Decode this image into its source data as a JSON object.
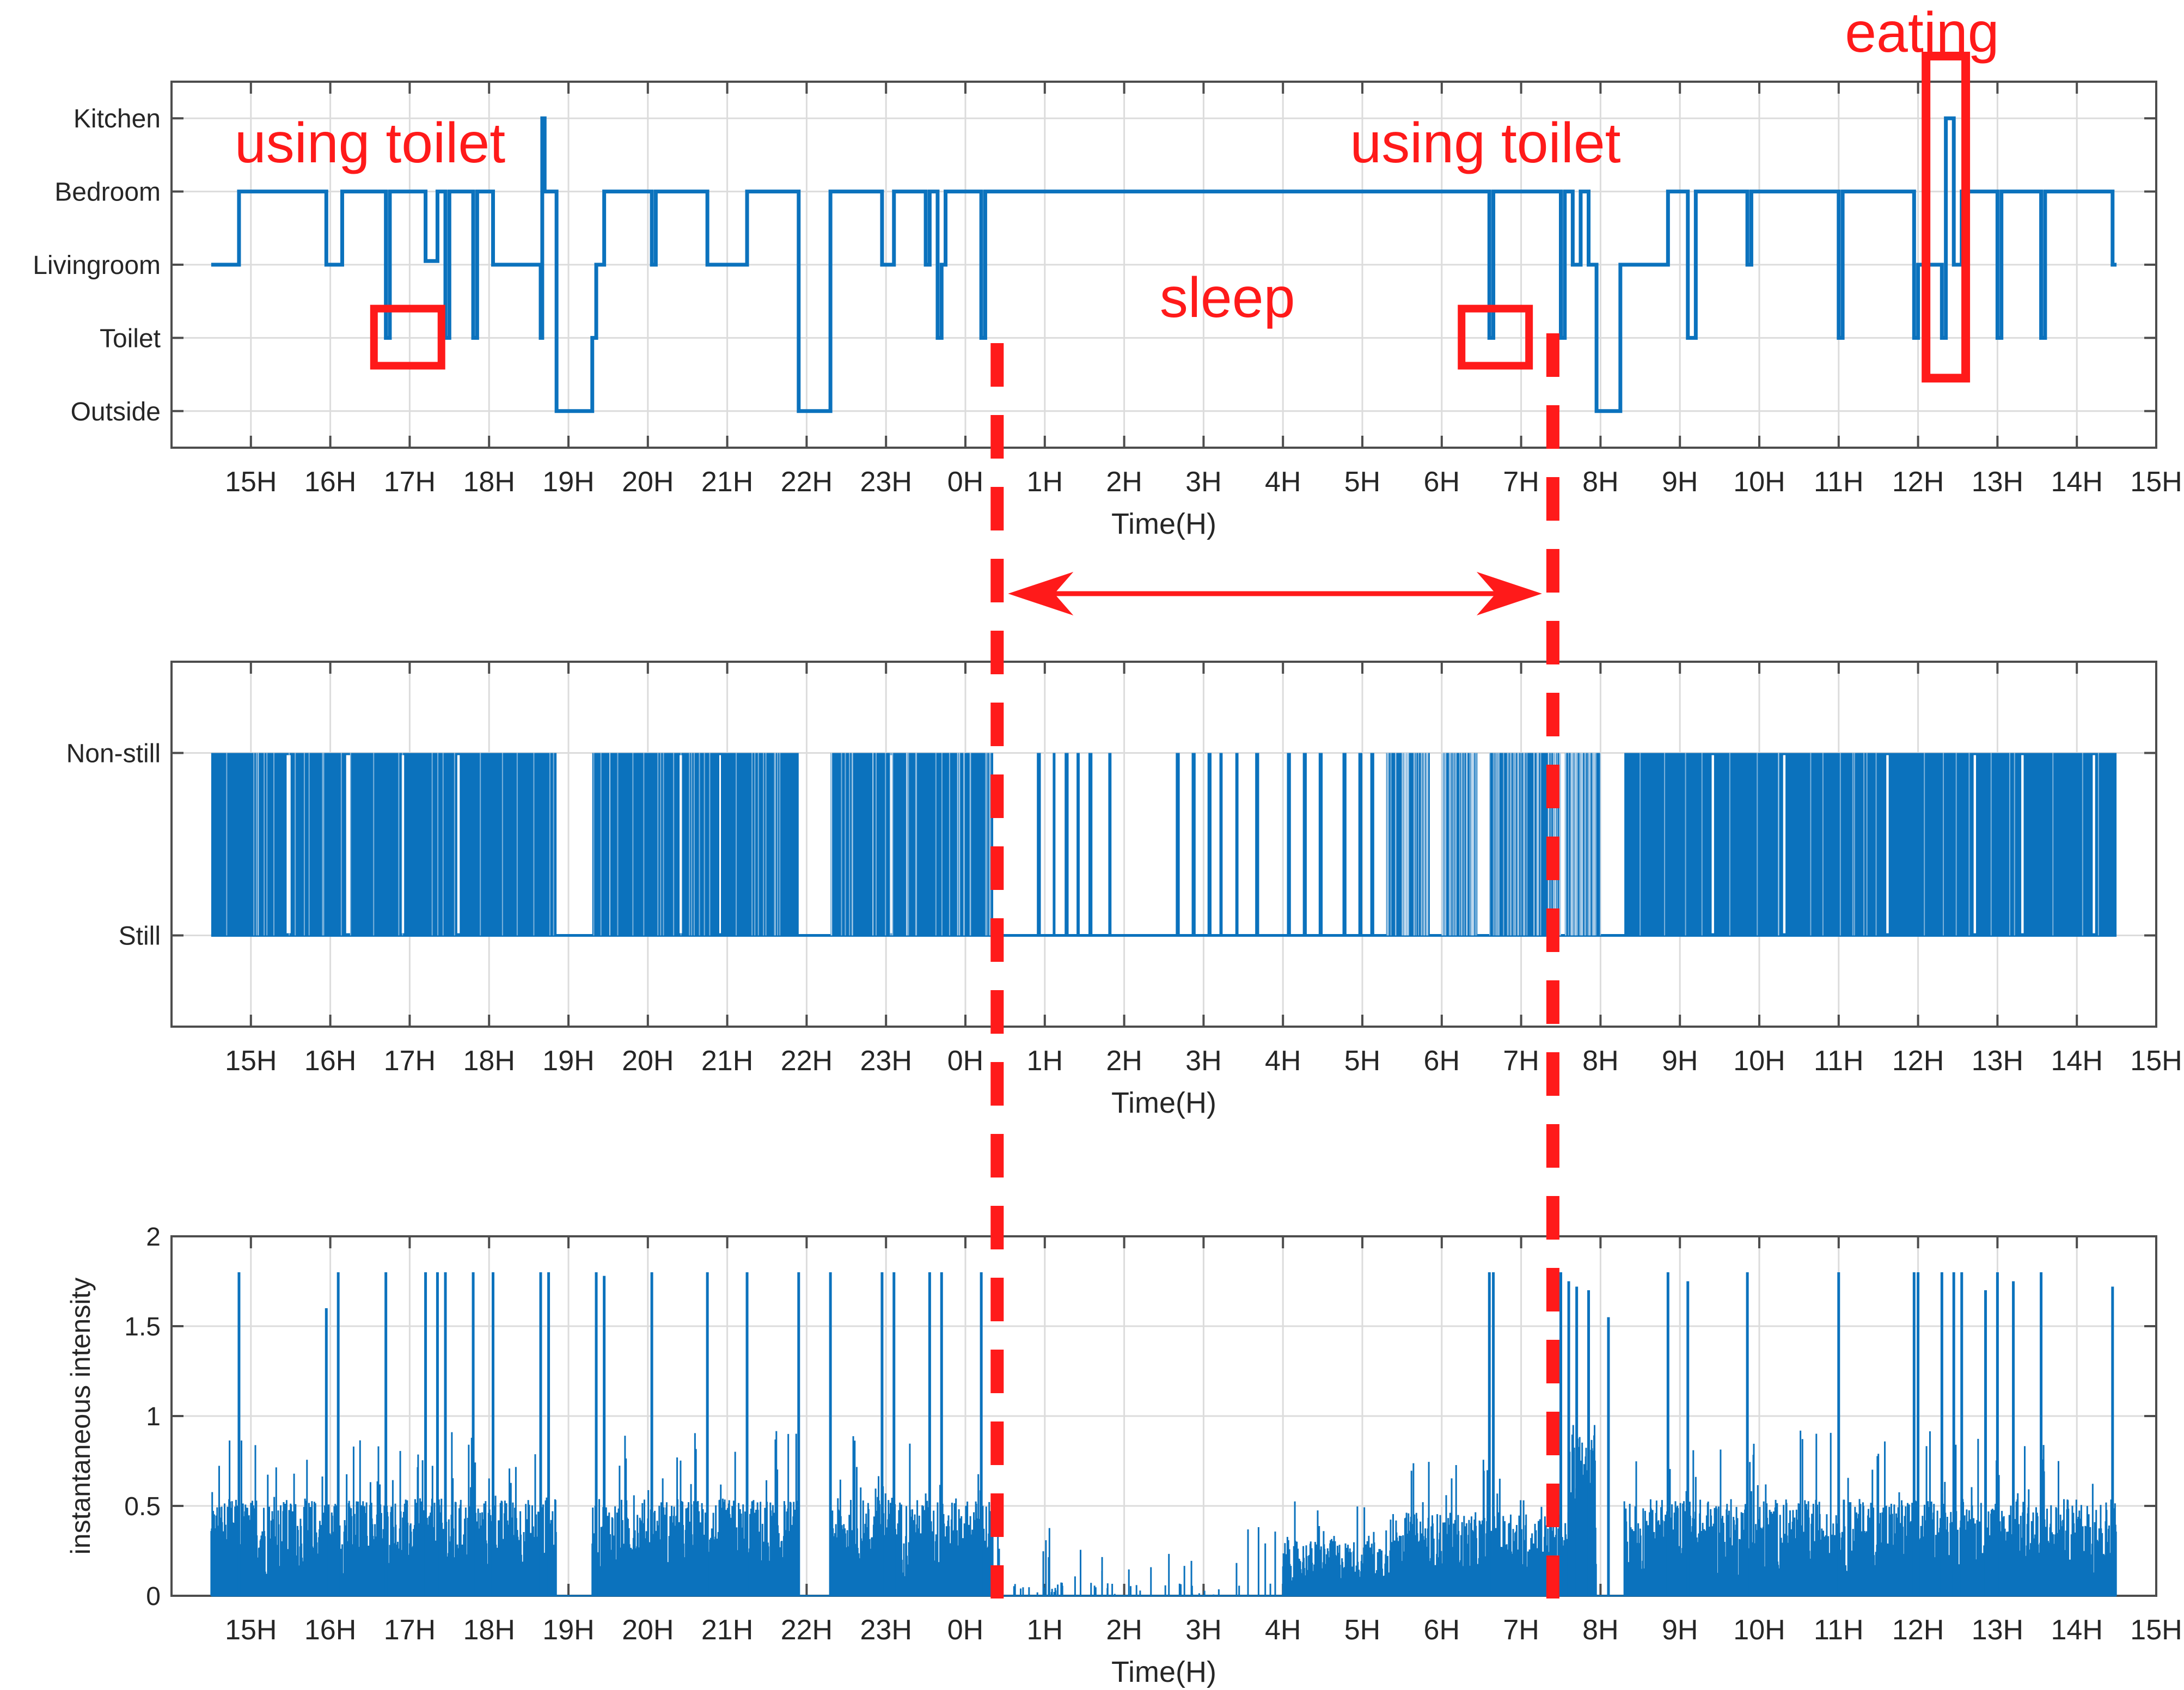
{
  "colors": {
    "series": "#0b72bd",
    "annotation": "#ff1a1a",
    "grid": "#dcdcdc",
    "axis": "#4d4d4d",
    "text": "#262626"
  },
  "chart_data": [
    {
      "id": "location",
      "type": "line",
      "step": true,
      "xlabel": "Time(H)",
      "ylabel": "",
      "xlim": [
        14.0,
        39.0
      ],
      "ylim": [
        -0.5,
        4.5
      ],
      "x_ticks": [
        15,
        16,
        17,
        18,
        19,
        20,
        21,
        22,
        23,
        24,
        25,
        26,
        27,
        28,
        29,
        30,
        31,
        32,
        33,
        34,
        35,
        36,
        37,
        38,
        39
      ],
      "x_tick_labels": [
        "15H",
        "16H",
        "17H",
        "18H",
        "19H",
        "20H",
        "21H",
        "22H",
        "23H",
        "0H",
        "1H",
        "2H",
        "3H",
        "4H",
        "5H",
        "6H",
        "7H",
        "8H",
        "9H",
        "10H",
        "11H",
        "12H",
        "13H",
        "14H",
        "15H"
      ],
      "y_ticks": [
        0,
        1,
        2,
        3,
        4
      ],
      "y_tick_labels": [
        "Outside",
        "Toilet",
        "Livingroom",
        "Bedroom",
        "Kitchen"
      ],
      "grid": true,
      "series": [
        {
          "name": "location",
          "points": [
            [
              14.5,
              2
            ],
            [
              14.85,
              3
            ],
            [
              15.95,
              2
            ],
            [
              16.15,
              3
            ],
            [
              16.7,
              1
            ],
            [
              16.75,
              3
            ],
            [
              17.2,
              2.05
            ],
            [
              17.35,
              3
            ],
            [
              17.45,
              1
            ],
            [
              17.5,
              3
            ],
            [
              17.8,
              1
            ],
            [
              17.85,
              3
            ],
            [
              18.05,
              2
            ],
            [
              18.65,
              1
            ],
            [
              18.67,
              4
            ],
            [
              18.7,
              3
            ],
            [
              18.85,
              0
            ],
            [
              19.3,
              1
            ],
            [
              19.35,
              2
            ],
            [
              19.45,
              3
            ],
            [
              20.05,
              2
            ],
            [
              20.1,
              3
            ],
            [
              20.75,
              2
            ],
            [
              21.25,
              3
            ],
            [
              21.9,
              0
            ],
            [
              22.3,
              3
            ],
            [
              22.95,
              2
            ],
            [
              23.1,
              3
            ],
            [
              23.5,
              2
            ],
            [
              23.55,
              3
            ],
            [
              23.65,
              1
            ],
            [
              23.7,
              2
            ],
            [
              23.75,
              3
            ],
            [
              24.2,
              1
            ],
            [
              24.25,
              3
            ],
            [
              30.6,
              1
            ],
            [
              30.65,
              3
            ],
            [
              31.5,
              1
            ],
            [
              31.55,
              3
            ],
            [
              31.65,
              2
            ],
            [
              31.75,
              3
            ],
            [
              31.85,
              2
            ],
            [
              31.95,
              0
            ],
            [
              32.25,
              2
            ],
            [
              32.85,
              3
            ],
            [
              33.1,
              1
            ],
            [
              33.2,
              3
            ],
            [
              33.85,
              2
            ],
            [
              33.9,
              3
            ],
            [
              35.0,
              1
            ],
            [
              35.05,
              3
            ],
            [
              35.95,
              1
            ],
            [
              36.0,
              2
            ],
            [
              36.3,
              1
            ],
            [
              36.35,
              4
            ],
            [
              36.45,
              2
            ],
            [
              36.55,
              3
            ],
            [
              37.0,
              1
            ],
            [
              37.05,
              3
            ],
            [
              37.55,
              1
            ],
            [
              37.6,
              3
            ],
            [
              38.45,
              2
            ],
            [
              38.5,
              2
            ]
          ]
        }
      ],
      "annotations": {
        "eating": "eating",
        "using_toilet_left": "using toilet",
        "using_toilet_right": "using toilet",
        "sleep": "sleep"
      }
    },
    {
      "id": "activity",
      "type": "line",
      "xlabel": "Time(H)",
      "ylabel": "",
      "xlim": [
        14.0,
        39.0
      ],
      "ylim": [
        -0.5,
        1.5
      ],
      "x_ticks": [
        15,
        16,
        17,
        18,
        19,
        20,
        21,
        22,
        23,
        24,
        25,
        26,
        27,
        28,
        29,
        30,
        31,
        32,
        33,
        34,
        35,
        36,
        37,
        38,
        39
      ],
      "x_tick_labels": [
        "15H",
        "16H",
        "17H",
        "18H",
        "19H",
        "20H",
        "21H",
        "22H",
        "23H",
        "0H",
        "1H",
        "2H",
        "3H",
        "4H",
        "5H",
        "6H",
        "7H",
        "8H",
        "9H",
        "10H",
        "11H",
        "12H",
        "13H",
        "14H",
        "15H"
      ],
      "y_ticks": [
        0,
        1
      ],
      "y_tick_labels": [
        "Still",
        "Non-still"
      ],
      "grid": true,
      "dense_blocks": [
        [
          14.5,
          18.85
        ],
        [
          19.3,
          21.9
        ],
        [
          22.3,
          24.35
        ],
        [
          29.3,
          29.85
        ],
        [
          30.0,
          30.45
        ],
        [
          30.6,
          31.5
        ],
        [
          31.55,
          32.0
        ],
        [
          32.3,
          38.5
        ]
      ],
      "sparse_toggles": [
        [
          24.9,
          24.95
        ],
        [
          25.1,
          25.13
        ],
        [
          25.25,
          25.3
        ],
        [
          25.4,
          25.44
        ],
        [
          25.55,
          25.6
        ],
        [
          25.8,
          25.84
        ],
        [
          26.65,
          26.7
        ],
        [
          26.85,
          26.9
        ],
        [
          27.05,
          27.1
        ],
        [
          27.2,
          27.24
        ],
        [
          27.4,
          27.44
        ],
        [
          27.65,
          27.7
        ],
        [
          28.05,
          28.1
        ],
        [
          28.25,
          28.3
        ],
        [
          28.45,
          28.5
        ],
        [
          28.75,
          28.8
        ],
        [
          28.95,
          29.0
        ],
        [
          29.1,
          29.15
        ]
      ],
      "gaps_in_blocks": [
        [
          15.45,
          15.5
        ],
        [
          16.2,
          16.25
        ],
        [
          16.9,
          16.93
        ],
        [
          17.6,
          17.63
        ],
        [
          20.4,
          20.43
        ],
        [
          20.9,
          20.92
        ],
        [
          23.05,
          23.08
        ],
        [
          33.4,
          33.43
        ],
        [
          34.3,
          34.33
        ],
        [
          35.6,
          35.63
        ],
        [
          36.7,
          36.73
        ],
        [
          37.3,
          37.33
        ],
        [
          38.2,
          38.23
        ]
      ]
    },
    {
      "id": "intensity",
      "type": "line",
      "xlabel": "Time(H)",
      "ylabel": "instantaneous intensity",
      "xlim": [
        14.0,
        39.0
      ],
      "ylim": [
        0,
        2
      ],
      "x_ticks": [
        15,
        16,
        17,
        18,
        19,
        20,
        21,
        22,
        23,
        24,
        25,
        26,
        27,
        28,
        29,
        30,
        31,
        32,
        33,
        34,
        35,
        36,
        37,
        38,
        39
      ],
      "x_tick_labels": [
        "15H",
        "16H",
        "17H",
        "18H",
        "19H",
        "20H",
        "21H",
        "22H",
        "23H",
        "0H",
        "1H",
        "2H",
        "3H",
        "4H",
        "5H",
        "6H",
        "7H",
        "8H",
        "9H",
        "10H",
        "11H",
        "12H",
        "13H",
        "14H",
        "15H"
      ],
      "y_ticks": [
        0,
        0.5,
        1,
        1.5,
        2
      ],
      "y_tick_labels": [
        "0",
        "0.5",
        "1",
        "1.5",
        "2"
      ],
      "grid": true,
      "active_segments": [
        [
          14.5,
          18.85,
          0.35
        ],
        [
          19.3,
          21.9,
          0.35
        ],
        [
          22.3,
          24.35,
          0.35
        ],
        [
          28.0,
          29.3,
          0.2
        ],
        [
          29.3,
          31.6,
          0.3
        ],
        [
          31.6,
          31.95,
          0.6
        ],
        [
          32.3,
          38.5,
          0.35
        ]
      ],
      "quiet_segments": [
        [
          24.35,
          28.0,
          0.06
        ]
      ],
      "peaks": [
        [
          14.85,
          1.8
        ],
        [
          15.95,
          1.6
        ],
        [
          16.1,
          1.8
        ],
        [
          16.7,
          1.8
        ],
        [
          17.2,
          1.8
        ],
        [
          17.35,
          1.8
        ],
        [
          17.45,
          1.8
        ],
        [
          17.8,
          1.8
        ],
        [
          18.05,
          1.8
        ],
        [
          18.65,
          1.8
        ],
        [
          18.75,
          1.8
        ],
        [
          19.35,
          1.8
        ],
        [
          19.45,
          1.78
        ],
        [
          20.05,
          1.8
        ],
        [
          20.75,
          1.8
        ],
        [
          21.25,
          1.8
        ],
        [
          21.9,
          1.8
        ],
        [
          22.3,
          1.8
        ],
        [
          22.95,
          1.8
        ],
        [
          23.1,
          1.8
        ],
        [
          23.55,
          1.8
        ],
        [
          23.7,
          1.8
        ],
        [
          24.2,
          1.8
        ],
        [
          30.6,
          1.8
        ],
        [
          30.65,
          1.8
        ],
        [
          31.5,
          1.8
        ],
        [
          31.6,
          1.75
        ],
        [
          31.7,
          1.72
        ],
        [
          31.85,
          1.7
        ],
        [
          32.1,
          1.55
        ],
        [
          32.85,
          1.8
        ],
        [
          33.1,
          1.75
        ],
        [
          33.85,
          1.8
        ],
        [
          35.0,
          1.8
        ],
        [
          35.95,
          1.8
        ],
        [
          36.0,
          1.8
        ],
        [
          36.3,
          1.8
        ],
        [
          36.45,
          1.8
        ],
        [
          36.55,
          1.8
        ],
        [
          36.85,
          1.7
        ],
        [
          37.0,
          1.8
        ],
        [
          37.2,
          1.75
        ],
        [
          37.55,
          1.8
        ],
        [
          38.45,
          1.72
        ]
      ]
    }
  ],
  "overlay": {
    "sleep_label": "sleep"
  }
}
